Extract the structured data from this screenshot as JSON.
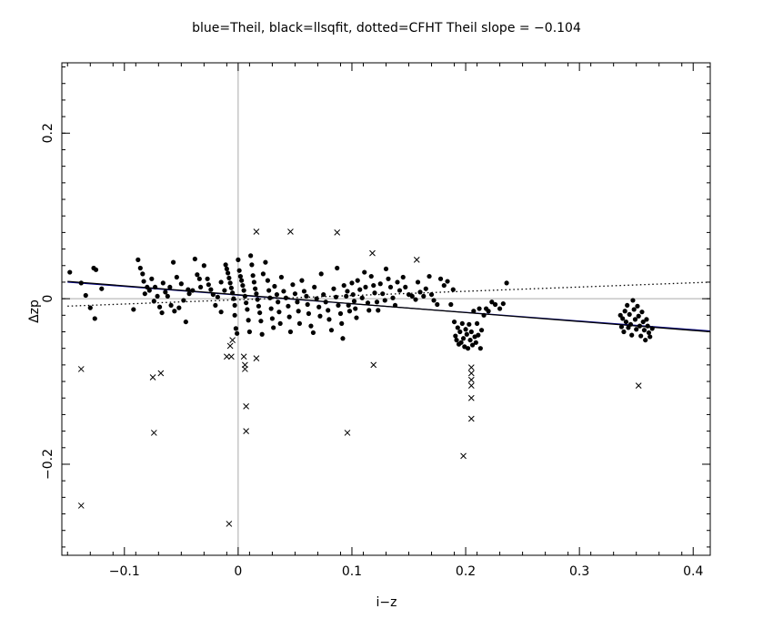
{
  "chart_data": {
    "type": "scatter",
    "title": "blue=Theil, black=llsqfit, dotted=CFHT   Theil slope = −0.104",
    "xlabel": "i−z",
    "ylabel": "Δzp",
    "xlim": [
      -0.155,
      0.415
    ],
    "ylim": [
      -0.31,
      0.285
    ],
    "x_ticks": [
      -0.1,
      0,
      0.1,
      0.2,
      0.3,
      0.4
    ],
    "x_tick_labels": [
      "−0.1",
      "0",
      "0.1",
      "0.2",
      "0.3",
      "0.4"
    ],
    "y_ticks": [
      -0.2,
      0,
      0.2
    ],
    "y_tick_labels": [
      "−0.2",
      "0",
      "0.2"
    ],
    "reference_lines": {
      "x": 0,
      "y": 0,
      "color": "#aaaaaa"
    },
    "lines": [
      {
        "id": "theil",
        "style": "solid",
        "color": "#000080",
        "x": [
          -0.15,
          0.415
        ],
        "y": [
          0.02,
          -0.039
        ]
      },
      {
        "id": "llsqfit",
        "style": "solid",
        "color": "#000000",
        "x": [
          -0.15,
          0.415
        ],
        "y": [
          0.021,
          -0.04
        ]
      },
      {
        "id": "cfht",
        "style": "dotted",
        "color": "#000000",
        "x": [
          -0.15,
          0.415
        ],
        "y": [
          -0.009,
          0.02
        ]
      }
    ],
    "points": [
      [
        -0.148,
        0.032
      ],
      [
        -0.138,
        0.019
      ],
      [
        -0.134,
        0.004
      ],
      [
        -0.13,
        -0.011
      ],
      [
        -0.127,
        0.037
      ],
      [
        -0.125,
        0.035
      ],
      [
        -0.126,
        -0.024
      ],
      [
        -0.12,
        0.012
      ],
      [
        -0.092,
        -0.013
      ],
      [
        -0.088,
        0.047
      ],
      [
        -0.086,
        0.037
      ],
      [
        -0.084,
        0.03
      ],
      [
        -0.083,
        0.021
      ],
      [
        -0.082,
        0.006
      ],
      [
        -0.08,
        0.014
      ],
      [
        -0.078,
        0.01
      ],
      [
        -0.076,
        0.024
      ],
      [
        -0.074,
        -0.003
      ],
      [
        -0.073,
        0.014
      ],
      [
        -0.071,
        0.003
      ],
      [
        -0.069,
        -0.01
      ],
      [
        -0.067,
        -0.017
      ],
      [
        -0.066,
        0.019
      ],
      [
        -0.064,
        0.008
      ],
      [
        -0.062,
        0.003
      ],
      [
        -0.06,
        0.014
      ],
      [
        -0.059,
        -0.008
      ],
      [
        -0.057,
        0.044
      ],
      [
        -0.056,
        -0.015
      ],
      [
        -0.054,
        0.026
      ],
      [
        -0.052,
        -0.011
      ],
      [
        -0.05,
        0.018
      ],
      [
        -0.048,
        -0.002
      ],
      [
        -0.046,
        -0.028
      ],
      [
        -0.044,
        0.011
      ],
      [
        -0.043,
        0.006
      ],
      [
        -0.04,
        0.01
      ],
      [
        -0.038,
        0.048
      ],
      [
        -0.036,
        0.029
      ],
      [
        -0.034,
        0.024
      ],
      [
        -0.033,
        0.014
      ],
      [
        -0.03,
        0.04
      ],
      [
        -0.027,
        0.024
      ],
      [
        -0.026,
        0.017
      ],
      [
        -0.024,
        0.011
      ],
      [
        -0.022,
        0.005
      ],
      [
        -0.02,
        -0.008
      ],
      [
        -0.018,
        0.002
      ],
      [
        -0.015,
        0.02
      ],
      [
        -0.015,
        -0.016
      ],
      [
        -0.012,
        0.01
      ],
      [
        -0.011,
        0.041
      ],
      [
        -0.01,
        0.036
      ],
      [
        -0.009,
        0.031
      ],
      [
        -0.008,
        0.025
      ],
      [
        -0.007,
        0.019
      ],
      [
        -0.006,
        0.013
      ],
      [
        -0.005,
        0.007
      ],
      [
        -0.004,
        0.0
      ],
      [
        -0.003,
        -0.008
      ],
      [
        -0.003,
        -0.02
      ],
      [
        -0.002,
        -0.036
      ],
      [
        -0.001,
        -0.042
      ],
      [
        0.0,
        0.047
      ],
      [
        0.001,
        0.034
      ],
      [
        0.002,
        0.027
      ],
      [
        0.003,
        0.022
      ],
      [
        0.004,
        0.016
      ],
      [
        0.005,
        0.01
      ],
      [
        0.006,
        0.003
      ],
      [
        0.007,
        -0.005
      ],
      [
        0.008,
        -0.013
      ],
      [
        0.009,
        -0.026
      ],
      [
        0.01,
        -0.04
      ],
      [
        0.011,
        0.052
      ],
      [
        0.012,
        0.041
      ],
      [
        0.013,
        0.028
      ],
      [
        0.014,
        0.02
      ],
      [
        0.015,
        0.012
      ],
      [
        0.016,
        0.006
      ],
      [
        0.017,
        -0.001
      ],
      [
        0.018,
        -0.009
      ],
      [
        0.019,
        -0.017
      ],
      [
        0.02,
        -0.027
      ],
      [
        0.021,
        -0.043
      ],
      [
        0.022,
        0.03
      ],
      [
        0.024,
        0.044
      ],
      [
        0.026,
        0.022
      ],
      [
        0.027,
        0.01
      ],
      [
        0.028,
        0.001
      ],
      [
        0.029,
        -0.012
      ],
      [
        0.03,
        -0.024
      ],
      [
        0.031,
        -0.035
      ],
      [
        0.032,
        0.015
      ],
      [
        0.034,
        0.005
      ],
      [
        0.035,
        -0.004
      ],
      [
        0.036,
        -0.016
      ],
      [
        0.037,
        -0.03
      ],
      [
        0.038,
        0.026
      ],
      [
        0.04,
        0.009
      ],
      [
        0.042,
        0.001
      ],
      [
        0.044,
        -0.009
      ],
      [
        0.045,
        -0.022
      ],
      [
        0.046,
        -0.04
      ],
      [
        0.048,
        0.017
      ],
      [
        0.05,
        0.006
      ],
      [
        0.052,
        -0.004
      ],
      [
        0.053,
        -0.015
      ],
      [
        0.054,
        -0.03
      ],
      [
        0.056,
        0.022
      ],
      [
        0.058,
        0.009
      ],
      [
        0.06,
        0.003
      ],
      [
        0.061,
        -0.007
      ],
      [
        0.062,
        -0.018
      ],
      [
        0.064,
        -0.033
      ],
      [
        0.066,
        -0.041
      ],
      [
        0.067,
        0.014
      ],
      [
        0.069,
        0.0
      ],
      [
        0.071,
        -0.01
      ],
      [
        0.072,
        -0.021
      ],
      [
        0.073,
        0.03
      ],
      [
        0.075,
        0.005
      ],
      [
        0.077,
        -0.004
      ],
      [
        0.079,
        -0.014
      ],
      [
        0.08,
        -0.025
      ],
      [
        0.082,
        -0.038
      ],
      [
        0.084,
        0.012
      ],
      [
        0.086,
        0.002
      ],
      [
        0.087,
        0.037
      ],
      [
        0.088,
        -0.008
      ],
      [
        0.09,
        -0.018
      ],
      [
        0.091,
        -0.03
      ],
      [
        0.092,
        -0.048
      ],
      [
        0.093,
        0.016
      ],
      [
        0.095,
        0.003
      ],
      [
        0.096,
        0.009
      ],
      [
        0.097,
        -0.008
      ],
      [
        0.098,
        -0.015
      ],
      [
        0.1,
        0.019
      ],
      [
        0.101,
        0.005
      ],
      [
        0.102,
        -0.003
      ],
      [
        0.103,
        -0.012
      ],
      [
        0.104,
        -0.023
      ],
      [
        0.105,
        0.022
      ],
      [
        0.107,
        0.011
      ],
      [
        0.109,
        0.001
      ],
      [
        0.111,
        0.032
      ],
      [
        0.112,
        0.014
      ],
      [
        0.114,
        -0.005
      ],
      [
        0.115,
        -0.014
      ],
      [
        0.117,
        0.027
      ],
      [
        0.119,
        0.016
      ],
      [
        0.12,
        0.007
      ],
      [
        0.122,
        -0.004
      ],
      [
        0.123,
        -0.014
      ],
      [
        0.125,
        0.018
      ],
      [
        0.127,
        0.006
      ],
      [
        0.129,
        -0.002
      ],
      [
        0.13,
        0.036
      ],
      [
        0.132,
        0.024
      ],
      [
        0.134,
        0.014
      ],
      [
        0.136,
        0.001
      ],
      [
        0.138,
        -0.008
      ],
      [
        0.14,
        0.02
      ],
      [
        0.142,
        0.01
      ],
      [
        0.145,
        0.026
      ],
      [
        0.147,
        0.014
      ],
      [
        0.15,
        0.005
      ],
      [
        0.153,
        0.003
      ],
      [
        0.156,
        -0.001
      ],
      [
        0.158,
        0.02
      ],
      [
        0.16,
        0.008
      ],
      [
        0.163,
        0.003
      ],
      [
        0.165,
        0.012
      ],
      [
        0.168,
        0.027
      ],
      [
        0.17,
        0.005
      ],
      [
        0.172,
        -0.002
      ],
      [
        0.175,
        -0.007
      ],
      [
        0.178,
        0.024
      ],
      [
        0.181,
        0.016
      ],
      [
        0.184,
        0.021
      ],
      [
        0.187,
        -0.007
      ],
      [
        0.189,
        0.011
      ],
      [
        0.19,
        -0.028
      ],
      [
        0.191,
        -0.045
      ],
      [
        0.192,
        -0.05
      ],
      [
        0.193,
        -0.035
      ],
      [
        0.194,
        -0.055
      ],
      [
        0.195,
        -0.04
      ],
      [
        0.196,
        -0.053
      ],
      [
        0.197,
        -0.03
      ],
      [
        0.198,
        -0.048
      ],
      [
        0.199,
        -0.058
      ],
      [
        0.2,
        -0.037
      ],
      [
        0.201,
        -0.043
      ],
      [
        0.202,
        -0.06
      ],
      [
        0.203,
        -0.031
      ],
      [
        0.204,
        -0.05
      ],
      [
        0.205,
        -0.04
      ],
      [
        0.206,
        -0.056
      ],
      [
        0.207,
        -0.015
      ],
      [
        0.208,
        -0.046
      ],
      [
        0.209,
        -0.053
      ],
      [
        0.21,
        -0.03
      ],
      [
        0.211,
        -0.044
      ],
      [
        0.212,
        -0.012
      ],
      [
        0.213,
        -0.06
      ],
      [
        0.214,
        -0.038
      ],
      [
        0.216,
        -0.02
      ],
      [
        0.218,
        -0.012
      ],
      [
        0.22,
        -0.015
      ],
      [
        0.223,
        -0.004
      ],
      [
        0.226,
        -0.007
      ],
      [
        0.23,
        -0.012
      ],
      [
        0.233,
        -0.006
      ],
      [
        0.236,
        0.019
      ],
      [
        0.336,
        -0.02
      ],
      [
        0.337,
        -0.034
      ],
      [
        0.338,
        -0.024
      ],
      [
        0.339,
        -0.04
      ],
      [
        0.34,
        -0.015
      ],
      [
        0.341,
        -0.028
      ],
      [
        0.342,
        -0.008
      ],
      [
        0.343,
        -0.035
      ],
      [
        0.344,
        -0.019
      ],
      [
        0.345,
        -0.031
      ],
      [
        0.346,
        -0.044
      ],
      [
        0.347,
        -0.002
      ],
      [
        0.348,
        -0.013
      ],
      [
        0.349,
        -0.025
      ],
      [
        0.35,
        -0.037
      ],
      [
        0.351,
        -0.009
      ],
      [
        0.352,
        -0.021
      ],
      [
        0.353,
        -0.033
      ],
      [
        0.354,
        -0.045
      ],
      [
        0.355,
        -0.016
      ],
      [
        0.356,
        -0.028
      ],
      [
        0.357,
        -0.038
      ],
      [
        0.358,
        -0.05
      ],
      [
        0.359,
        -0.025
      ],
      [
        0.36,
        -0.033
      ],
      [
        0.361,
        -0.041
      ],
      [
        0.362,
        -0.046
      ],
      [
        0.364,
        -0.036
      ]
    ],
    "crosses": [
      [
        -0.138,
        -0.085
      ],
      [
        -0.138,
        -0.25
      ],
      [
        -0.075,
        -0.095
      ],
      [
        -0.074,
        -0.162
      ],
      [
        -0.068,
        -0.09
      ],
      [
        -0.01,
        -0.07
      ],
      [
        -0.008,
        -0.272
      ],
      [
        -0.007,
        -0.057
      ],
      [
        -0.006,
        -0.07
      ],
      [
        -0.005,
        -0.05
      ],
      [
        0.005,
        -0.07
      ],
      [
        0.006,
        -0.08
      ],
      [
        0.006,
        -0.085
      ],
      [
        0.007,
        -0.13
      ],
      [
        0.007,
        -0.16
      ],
      [
        0.016,
        0.081
      ],
      [
        0.016,
        -0.072
      ],
      [
        0.046,
        0.081
      ],
      [
        0.087,
        0.08
      ],
      [
        0.096,
        -0.162
      ],
      [
        0.118,
        0.055
      ],
      [
        0.119,
        -0.08
      ],
      [
        0.157,
        0.047
      ],
      [
        0.198,
        -0.19
      ],
      [
        0.205,
        -0.083
      ],
      [
        0.205,
        -0.09
      ],
      [
        0.205,
        -0.098
      ],
      [
        0.205,
        -0.105
      ],
      [
        0.205,
        -0.12
      ],
      [
        0.205,
        -0.145
      ],
      [
        0.352,
        -0.105
      ]
    ]
  }
}
